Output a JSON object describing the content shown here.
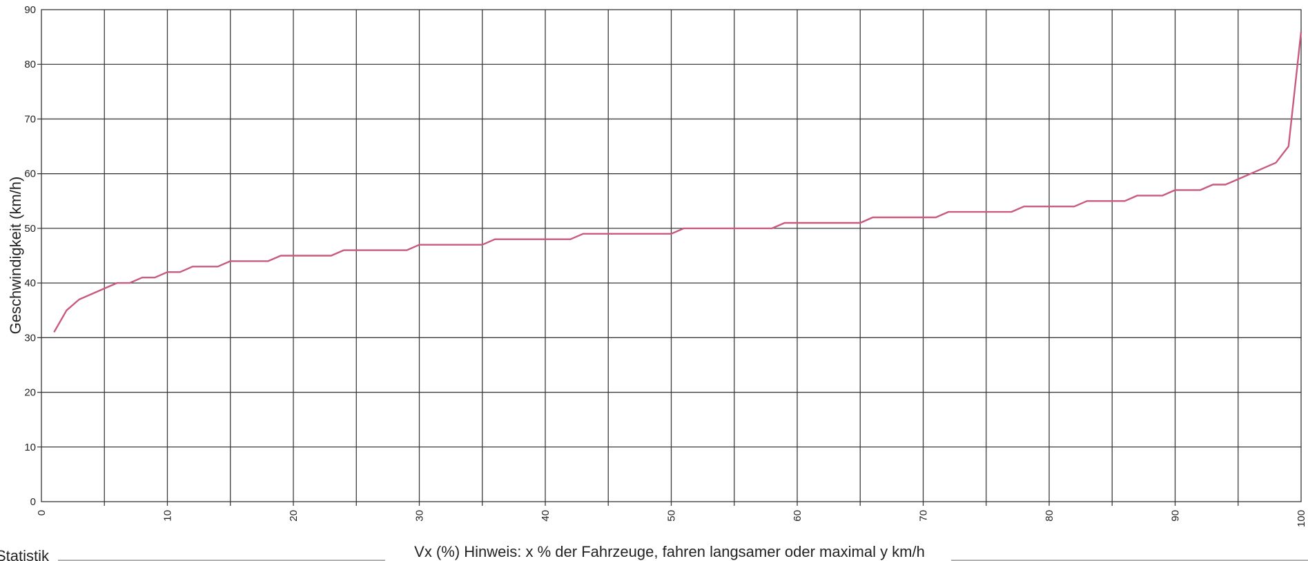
{
  "chart_data": {
    "type": "line",
    "title": "",
    "xlabel": "Vx (%) Hinweis: x % der Fahrzeuge, fahren langsamer oder maximal y km/h",
    "ylabel": "Geschwindigkeit (km/h)",
    "xlim": [
      0,
      100
    ],
    "ylim": [
      0,
      90
    ],
    "x_ticks": [
      "0",
      "10",
      "20",
      "30",
      "40",
      "50",
      "60",
      "70",
      "80",
      "90",
      "100"
    ],
    "y_ticks": [
      "0",
      "10",
      "20",
      "30",
      "40",
      "50",
      "60",
      "70",
      "80",
      "90"
    ],
    "grid": true,
    "legend": "none",
    "line_color": "#c85a7c",
    "series": [
      {
        "x": [
          1,
          2,
          3,
          4,
          5,
          6,
          7,
          8,
          9,
          10,
          11,
          12,
          13,
          14,
          15,
          16,
          17,
          18,
          19,
          20,
          21,
          22,
          23,
          24,
          25,
          26,
          27,
          28,
          29,
          30,
          31,
          32,
          33,
          34,
          35,
          36,
          37,
          38,
          39,
          40,
          41,
          42,
          43,
          44,
          45,
          46,
          47,
          48,
          49,
          50,
          51,
          52,
          53,
          54,
          55,
          56,
          57,
          58,
          59,
          60,
          61,
          62,
          63,
          64,
          65,
          66,
          67,
          68,
          69,
          70,
          71,
          72,
          73,
          74,
          75,
          76,
          77,
          78,
          79,
          80,
          81,
          82,
          83,
          84,
          85,
          86,
          87,
          88,
          89,
          90,
          91,
          92,
          93,
          94,
          95,
          96,
          97,
          98,
          99,
          100
        ],
        "values": [
          31,
          35,
          37,
          38,
          39,
          40,
          40,
          41,
          41,
          42,
          42,
          43,
          43,
          43,
          44,
          44,
          44,
          44,
          45,
          45,
          45,
          45,
          45,
          46,
          46,
          46,
          46,
          46,
          46,
          47,
          47,
          47,
          47,
          47,
          47,
          48,
          48,
          48,
          48,
          48,
          48,
          48,
          49,
          49,
          49,
          49,
          49,
          49,
          49,
          49,
          50,
          50,
          50,
          50,
          50,
          50,
          50,
          50,
          51,
          51,
          51,
          51,
          51,
          51,
          51,
          52,
          52,
          52,
          52,
          52,
          52,
          53,
          53,
          53,
          53,
          53,
          53,
          54,
          54,
          54,
          54,
          54,
          55,
          55,
          55,
          55,
          56,
          56,
          56,
          57,
          57,
          57,
          58,
          58,
          59,
          60,
          61,
          62,
          65,
          86
        ]
      }
    ]
  },
  "footer": {
    "section_label": "Statistik"
  }
}
